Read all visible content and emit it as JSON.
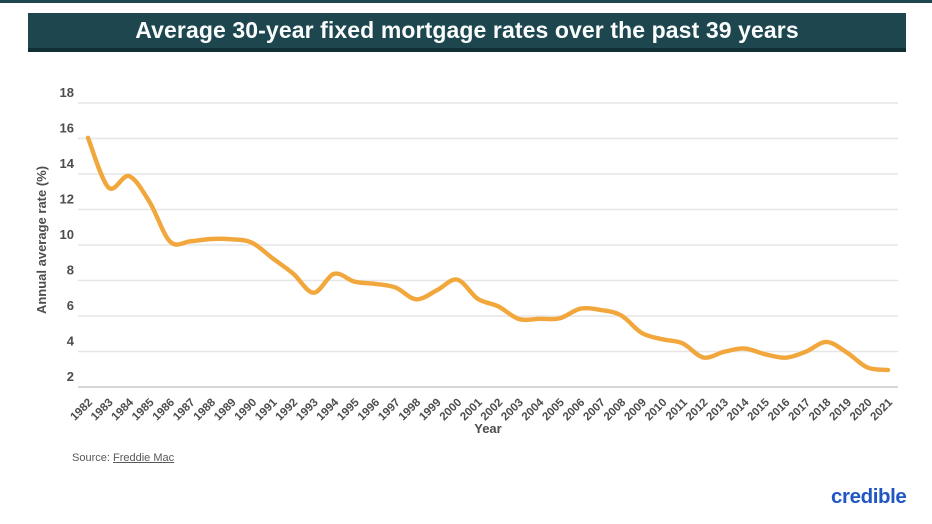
{
  "banner": {
    "title": "Average 30-year fixed mortgage rates over the past 39 years"
  },
  "chart_data": {
    "type": "line",
    "title": "Average 30-year fixed mortgage rates over the past 39 years",
    "xlabel": "Year",
    "ylabel": "Annual average rate (%)",
    "x": [
      1982,
      1983,
      1984,
      1985,
      1986,
      1987,
      1988,
      1989,
      1990,
      1991,
      1992,
      1993,
      1994,
      1995,
      1996,
      1997,
      1998,
      1999,
      2000,
      2001,
      2002,
      2003,
      2004,
      2005,
      2006,
      2007,
      2008,
      2009,
      2010,
      2011,
      2012,
      2013,
      2014,
      2015,
      2016,
      2017,
      2018,
      2019,
      2020,
      2021
    ],
    "series": [
      {
        "name": "30-year fixed mortgage rate",
        "values": [
          16.04,
          13.24,
          13.88,
          12.43,
          10.19,
          10.21,
          10.34,
          10.32,
          10.13,
          9.25,
          8.39,
          7.31,
          8.38,
          7.93,
          7.81,
          7.6,
          6.94,
          7.44,
          8.05,
          6.97,
          6.54,
          5.83,
          5.84,
          5.87,
          6.41,
          6.34,
          6.03,
          5.04,
          4.69,
          4.45,
          3.66,
          3.98,
          4.17,
          3.85,
          3.65,
          3.99,
          4.54,
          3.94,
          3.1,
          2.96
        ]
      }
    ],
    "ylim": [
      2,
      18
    ],
    "yticks": [
      2,
      4,
      6,
      8,
      10,
      12,
      14,
      16,
      18
    ],
    "grid": true,
    "legend": "none",
    "line_color": "#f1a73c",
    "gridline_color": "#e6e6e6",
    "axisline_color": "#c8c8c8",
    "tick_color": "#4d4d4d"
  },
  "footer": {
    "source_prefix": "Source:",
    "source_link": "Freddie Mac"
  },
  "brand": {
    "logo_text": "credible",
    "color": "#2157c4"
  },
  "theme": {
    "banner_color": "#1d464f",
    "banner_shadow": "#112e35"
  }
}
